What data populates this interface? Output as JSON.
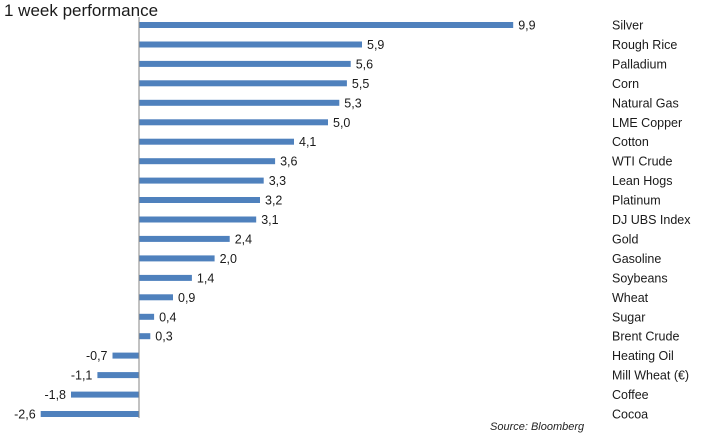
{
  "title": "1 week performance",
  "source": "Source: Bloomberg",
  "colors": {
    "bar": "#4f81bd",
    "axis": "#868686",
    "text": "#1a1a1a"
  },
  "chart_data": {
    "type": "bar",
    "orientation": "horizontal",
    "title": "1 week performance",
    "xlabel": "",
    "ylabel": "",
    "grid": false,
    "legend": "none",
    "categories": [
      "Silver",
      "Rough Rice",
      "Palladium",
      "Corn",
      "Natural Gas",
      "LME Copper",
      "Cotton",
      "WTI Crude",
      "Lean Hogs",
      "Platinum",
      "DJ UBS Index",
      "Gold",
      "Gasoline",
      "Soybeans",
      "Wheat",
      "Sugar",
      "Brent Crude",
      "Heating Oil",
      "Mill Wheat (€)",
      "Coffee",
      "Cocoa"
    ],
    "values": [
      9.9,
      5.9,
      5.6,
      5.5,
      5.3,
      5.0,
      4.1,
      3.6,
      3.3,
      3.2,
      3.1,
      2.4,
      2.0,
      1.4,
      0.9,
      0.4,
      0.3,
      -0.7,
      -1.1,
      -1.8,
      -2.6
    ],
    "value_labels": [
      "9,9",
      "5,9",
      "5,6",
      "5,5",
      "5,3",
      "5,0",
      "4,1",
      "3,6",
      "3,3",
      "3,2",
      "3,1",
      "2,4",
      "2,0",
      "1,4",
      "0,9",
      "0,4",
      "0,3",
      "-0,7",
      "-1,1",
      "-1,8",
      "-2,6"
    ]
  }
}
